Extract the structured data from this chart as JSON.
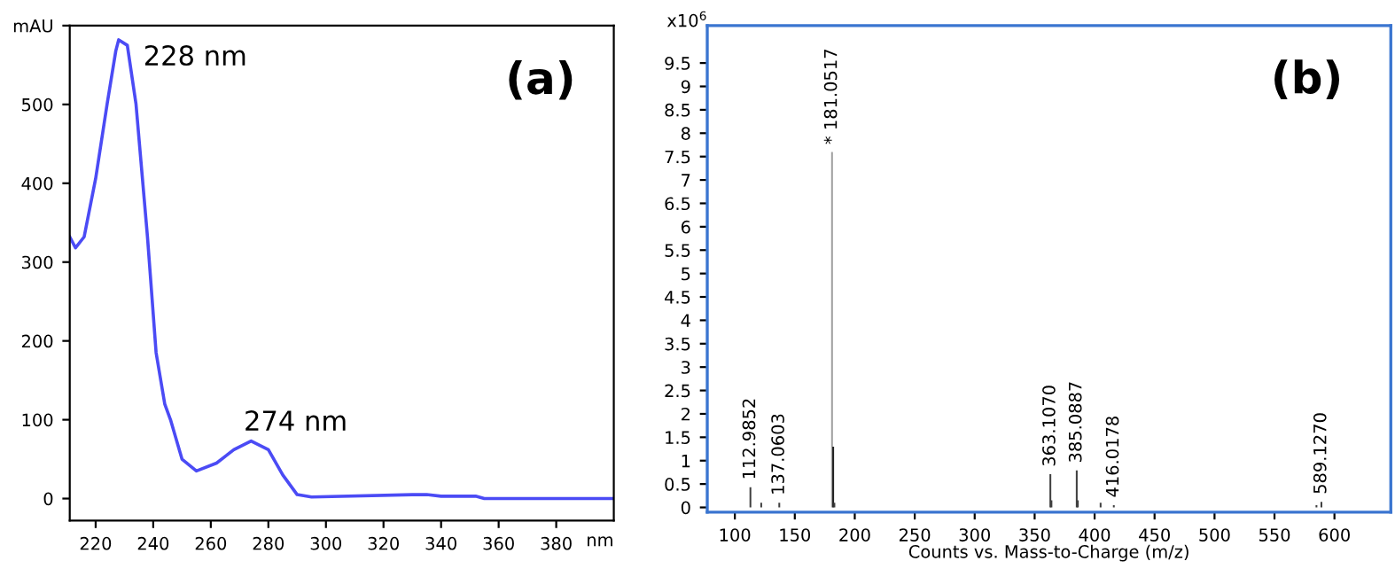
{
  "chart_data": [
    {
      "type": "line",
      "xlabel": "nm",
      "x": [
        211,
        213,
        216,
        220,
        224,
        227,
        228,
        231,
        234,
        238,
        241,
        244,
        246,
        250,
        255,
        262,
        268,
        274,
        280,
        285,
        290,
        295,
        330,
        335,
        340,
        352,
        355,
        400
      ],
      "series": [
        {
          "color": "#4b4bf5",
          "values": [
            332,
            318,
            332,
            406,
            501,
            568,
            582,
            575,
            501,
            332,
            185,
            120,
            100,
            50,
            35,
            45,
            62,
            73,
            62,
            30,
            5,
            2,
            5,
            5,
            3,
            3,
            0,
            0
          ]
        }
      ],
      "xlim": [
        211,
        400
      ],
      "xticks": [
        220,
        240,
        260,
        280,
        300,
        320,
        340,
        360,
        380
      ],
      "ylim": [
        -28,
        600
      ],
      "yticks": [
        0,
        100,
        200,
        300,
        400,
        500,
        {
          "value": 600,
          "label": "mAU"
        }
      ],
      "annotations": [
        {
          "text": "228 nm",
          "x": 228,
          "y": 582
        },
        {
          "text": "274 nm",
          "x": 274,
          "y": 73
        },
        "(a)"
      ]
    },
    {
      "type": "bar",
      "xlabel": "Counts vs. Mass-to-Charge (m/z)",
      "ylabel": "x10$^{6}$",
      "x": [
        112.9852,
        122,
        137.0603,
        181.0517,
        182,
        183,
        363.107,
        364,
        385.0887,
        386,
        405,
        416.0178,
        585,
        589.127
      ],
      "values": [
        0.43,
        0.1,
        0.1,
        7.6,
        1.3,
        0.1,
        0.71,
        0.15,
        0.79,
        0.15,
        0.1,
        0.05,
        0.05,
        0.12
      ],
      "colors": [
        "#404040",
        "#404040",
        "#404040",
        "#a0a0a0",
        "#202020",
        "#404040",
        "#404040",
        "#404040",
        "#404040",
        "#404040",
        "#404040",
        "#404040",
        "#404040",
        "#404040"
      ],
      "xlim": [
        77,
        647
      ],
      "xticks": [
        100,
        150,
        200,
        250,
        300,
        350,
        400,
        450,
        500,
        550,
        600
      ],
      "ylim": [
        -0.1,
        10.3
      ],
      "yticks": [
        0,
        0.5,
        1,
        1.5,
        2,
        2.5,
        3,
        3.5,
        4,
        4.5,
        5,
        5.5,
        6,
        6.5,
        7,
        7.5,
        8,
        8.5,
        9,
        9.5
      ],
      "annotations": [
        {
          "text": "112.9852",
          "x": 112.9852,
          "y": 0.43
        },
        {
          "text": "137.0603",
          "x": 137.0603,
          "y": 0.1
        },
        {
          "text": "* 181.0517",
          "x": 181.0517,
          "y": 7.6
        },
        {
          "text": "363.1070",
          "x": 363.107,
          "y": 0.71
        },
        {
          "text": "385.0887",
          "x": 385.0887,
          "y": 0.79
        },
        {
          "text": "416.0178",
          "x": 416.0178,
          "y": 0.05
        },
        {
          "text": "589.1270",
          "x": 589.127,
          "y": 0.12
        },
        "(b)"
      ]
    }
  ]
}
